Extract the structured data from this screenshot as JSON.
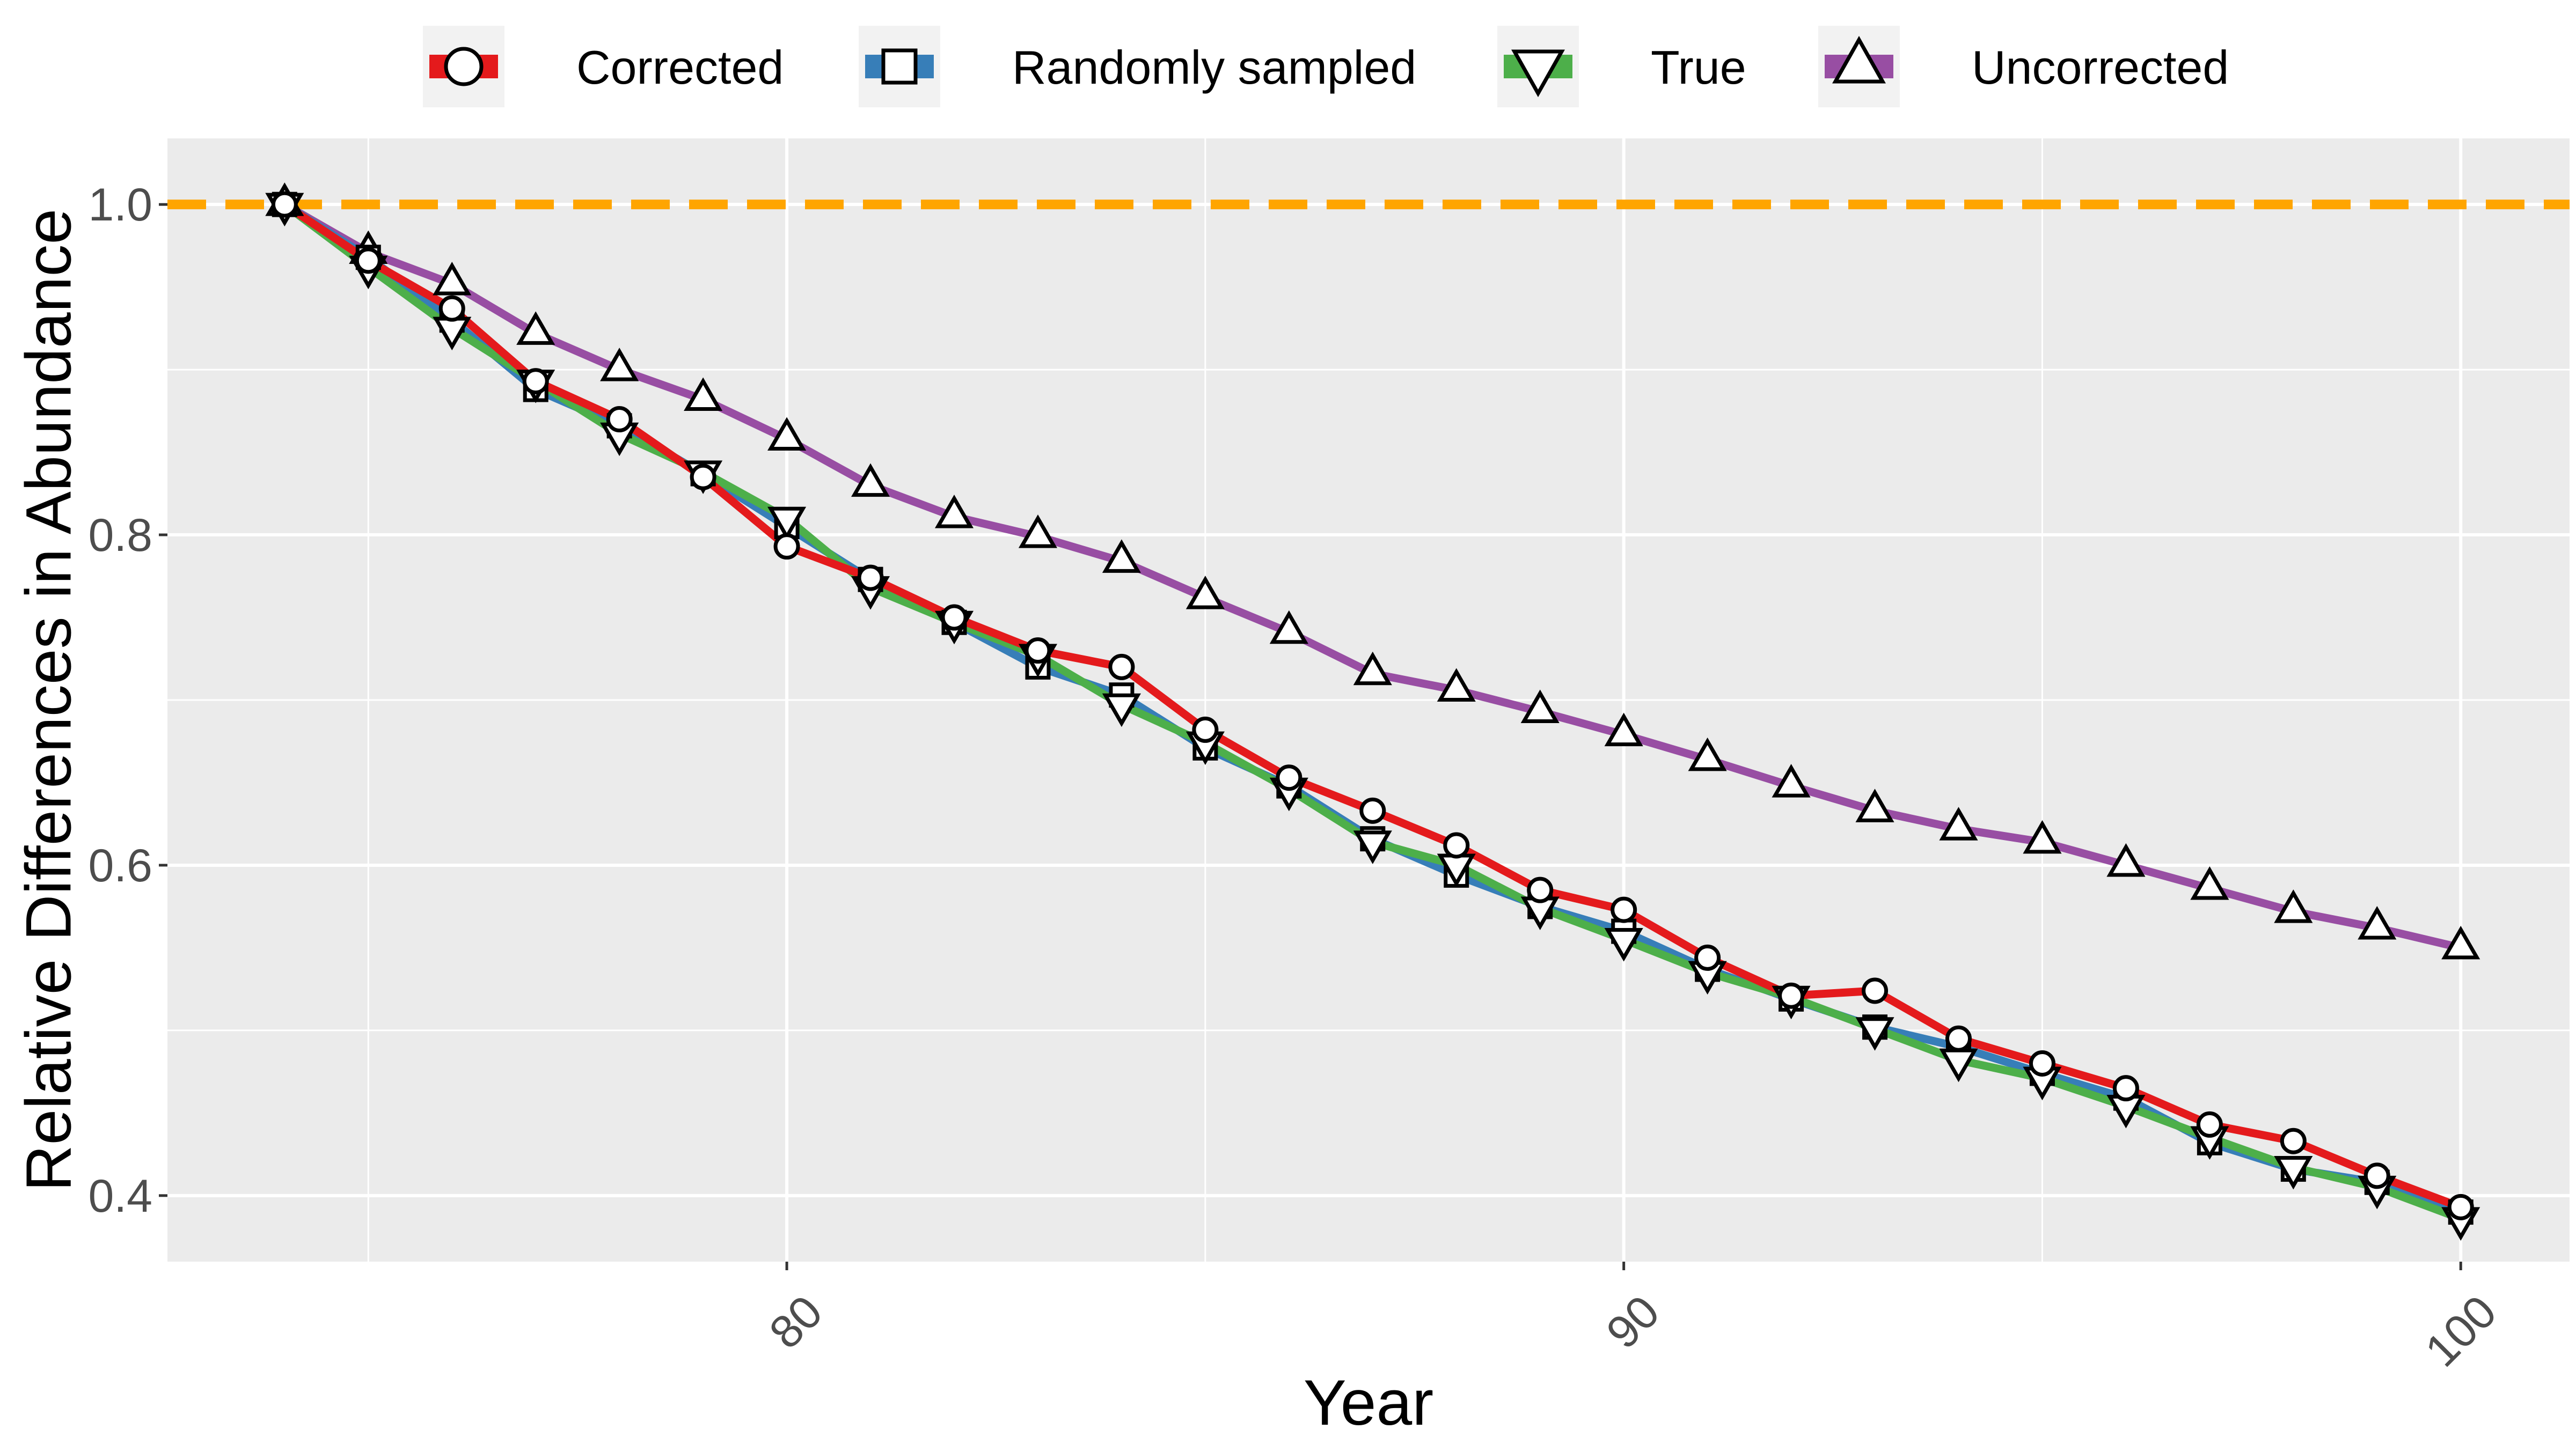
{
  "chart_data": {
    "type": "line",
    "title": "",
    "xlabel": "Year",
    "ylabel": "Relative Differences in Abundance",
    "xlim": [
      72.6,
      101.3
    ],
    "ylim": [
      0.36,
      1.04
    ],
    "xticks": [
      80,
      90,
      100
    ],
    "yticks": [
      0.4,
      0.6,
      0.8,
      1.0
    ],
    "ytick_labels": [
      "0.4",
      "0.6",
      "0.8",
      "1.0"
    ],
    "grid": true,
    "legend_position": "top",
    "reference_line": {
      "y": 1.0,
      "color": "#FFA500",
      "style": "dashed"
    },
    "x": [
      74,
      75,
      76,
      77,
      78,
      79,
      80,
      81,
      82,
      83,
      84,
      85,
      86,
      87,
      88,
      89,
      90,
      91,
      92,
      93,
      94,
      95,
      96,
      97,
      98,
      99,
      100
    ],
    "series": [
      {
        "name": "Corrected",
        "color": "#E41A1C",
        "marker": "circle",
        "values": [
          1.0,
          0.966,
          0.937,
          0.893,
          0.87,
          0.835,
          0.793,
          0.774,
          0.75,
          0.73,
          0.72,
          0.682,
          0.653,
          0.633,
          0.612,
          0.585,
          0.573,
          0.544,
          0.521,
          0.524,
          0.495,
          0.48,
          0.465,
          0.443,
          0.433,
          0.412,
          0.393
        ]
      },
      {
        "name": "Randomly sampled",
        "color": "#377EB8",
        "marker": "square",
        "values": [
          1.0,
          0.968,
          0.93,
          0.888,
          0.866,
          0.837,
          0.805,
          0.773,
          0.747,
          0.72,
          0.703,
          0.671,
          0.648,
          0.616,
          0.594,
          0.575,
          0.56,
          0.537,
          0.519,
          0.502,
          0.49,
          0.474,
          0.459,
          0.432,
          0.416,
          0.408,
          0.39
        ]
      },
      {
        "name": "True",
        "color": "#4DAF4A",
        "marker": "triangle-down",
        "values": [
          1.0,
          0.962,
          0.925,
          0.893,
          0.861,
          0.838,
          0.81,
          0.768,
          0.747,
          0.727,
          0.697,
          0.674,
          0.646,
          0.614,
          0.6,
          0.574,
          0.555,
          0.535,
          0.52,
          0.501,
          0.482,
          0.471,
          0.454,
          0.435,
          0.417,
          0.405,
          0.386
        ]
      },
      {
        "name": "Uncorrected",
        "color": "#984EA3",
        "marker": "triangle-up",
        "values": [
          1.0,
          0.971,
          0.952,
          0.922,
          0.9,
          0.882,
          0.858,
          0.83,
          0.811,
          0.799,
          0.784,
          0.762,
          0.741,
          0.716,
          0.706,
          0.693,
          0.679,
          0.664,
          0.648,
          0.633,
          0.622,
          0.614,
          0.6,
          0.586,
          0.572,
          0.562,
          0.55
        ]
      }
    ]
  },
  "colors": {
    "panel_background": "#EBEBEB",
    "grid": "#FFFFFF",
    "text": "#4D4D4D",
    "reference": "#FFA500"
  }
}
